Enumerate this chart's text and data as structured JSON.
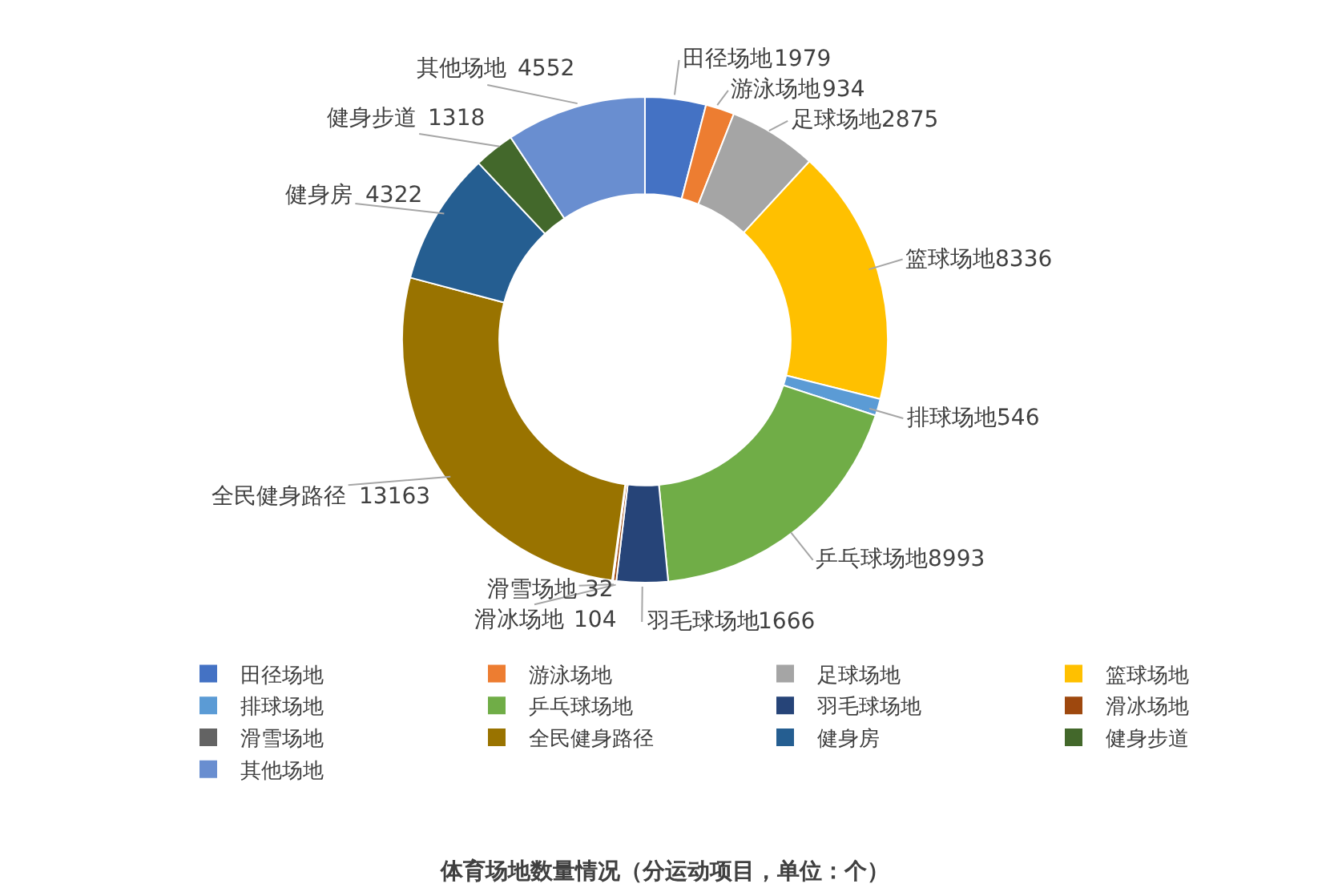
{
  "chart_data": {
    "type": "donut",
    "title": "体育场地数量情况（分运动项目，单位：个）",
    "categories": [
      "田径场地",
      "游泳场地",
      "足球场地",
      "篮球场地",
      "排球场地",
      "乒乓球场地",
      "羽毛球场地",
      "滑冰场地",
      "滑雪场地",
      "全民健身路径",
      "健身房",
      "健身步道",
      "其他场地"
    ],
    "values": [
      1979,
      934,
      2875,
      8336,
      546,
      8993,
      1666,
      104,
      32,
      13163,
      4322,
      1318,
      4552
    ],
    "colors": [
      "#4472c4",
      "#ed7d31",
      "#a5a5a5",
      "#ffc000",
      "#5b9bd5",
      "#70ad47",
      "#264478",
      "#9e480e",
      "#636363",
      "#997300",
      "#255e91",
      "#43682b",
      "#698ed0"
    ],
    "data_labels": true,
    "legend": "bottom"
  }
}
